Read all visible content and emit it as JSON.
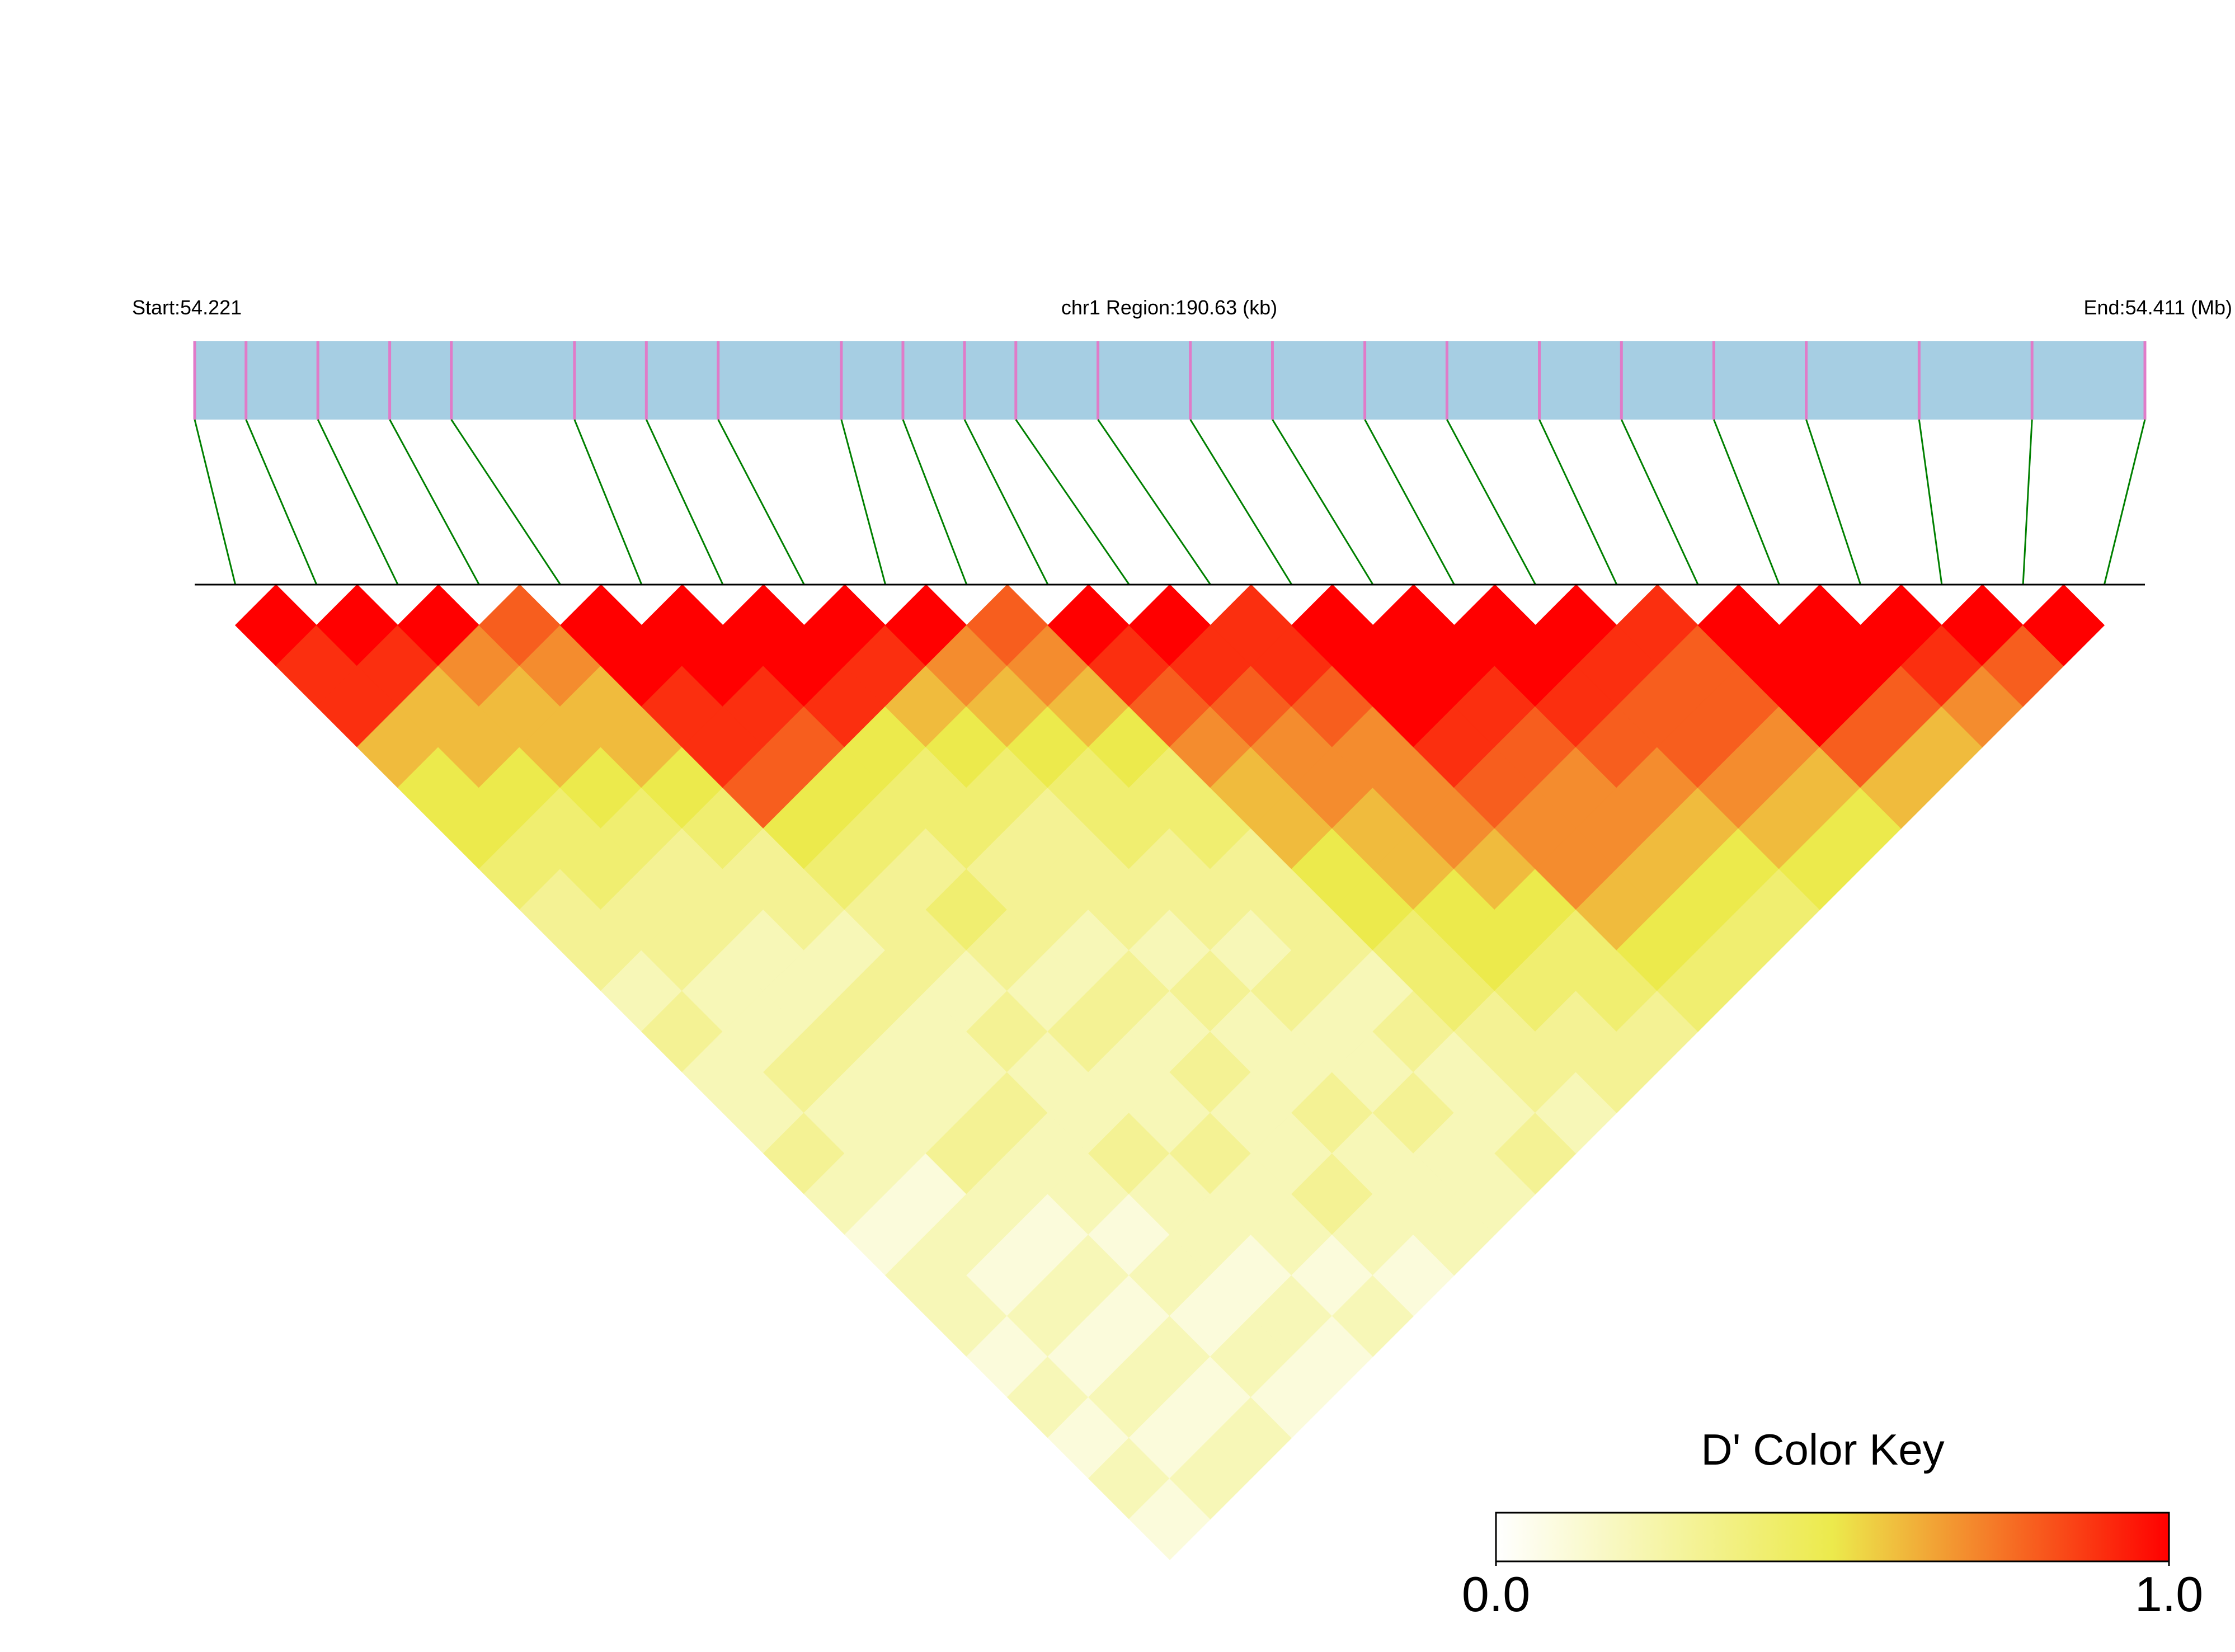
{
  "chart_data": {
    "type": "ld-heatmap",
    "start_label": "Start:54.221",
    "region_label": "chr1 Region:190.63 (kb)",
    "end_label": "End:54.411 (Mb)",
    "xlim": [
      54.221,
      54.411
    ],
    "x": [
      54.221,
      54.226,
      54.233,
      54.24,
      54.246,
      54.258,
      54.265,
      54.272,
      54.284,
      54.29,
      54.296,
      54.301,
      54.309,
      54.318,
      54.326,
      54.335,
      54.343,
      54.352,
      54.36,
      54.369,
      54.378,
      54.389,
      54.4,
      54.411
    ],
    "dprime": [
      [
        1,
        0.9,
        0.9,
        0.6,
        0.5,
        0.5,
        0.4,
        0.3,
        0.3,
        0.2,
        0.3,
        0.2,
        0.2,
        0.3,
        0.2,
        0.1,
        0.2,
        0.2,
        0.1,
        0.2,
        0.1,
        0.2,
        0.1
      ],
      [
        1,
        0.9,
        0.6,
        0.6,
        0.5,
        0.4,
        0.4,
        0.3,
        0.3,
        0.2,
        0.2,
        0.3,
        0.2,
        0.2,
        0.1,
        0.2,
        0.1,
        0.2,
        0.1,
        0.2,
        0.1,
        0.2
      ],
      [
        1,
        0.7,
        0.6,
        0.6,
        0.5,
        0.4,
        0.3,
        0.3,
        0.2,
        0.2,
        0.3,
        0.2,
        0.2,
        0.3,
        0.2,
        0.1,
        0.2,
        0.1,
        0.2,
        0.1,
        0.2
      ],
      [
        0.8,
        0.7,
        0.6,
        0.6,
        0.5,
        0.4,
        0.3,
        0.3,
        0.2,
        0.3,
        0.2,
        0.2,
        0.3,
        0.2,
        0.2,
        0.1,
        0.2,
        0.1,
        0.2,
        0.1
      ],
      [
        1,
        1,
        0.9,
        0.9,
        0.8,
        0.5,
        0.4,
        0.3,
        0.3,
        0.2,
        0.3,
        0.2,
        0.2,
        0.3,
        0.2,
        0.2,
        0.1,
        0.2,
        0.1
      ],
      [
        1,
        1,
        0.9,
        0.8,
        0.5,
        0.4,
        0.3,
        0.4,
        0.3,
        0.2,
        0.3,
        0.2,
        0.2,
        0.3,
        0.2,
        0.2,
        0.1,
        0.2
      ],
      [
        1,
        1,
        0.9,
        0.5,
        0.4,
        0.4,
        0.3,
        0.3,
        0.2,
        0.3,
        0.2,
        0.3,
        0.2,
        0.2,
        0.3,
        0.2,
        0.1
      ],
      [
        1,
        0.9,
        0.6,
        0.5,
        0.4,
        0.3,
        0.3,
        0.3,
        0.2,
        0.3,
        0.2,
        0.2,
        0.3,
        0.2,
        0.2,
        0.2
      ],
      [
        1,
        0.7,
        0.6,
        0.5,
        0.4,
        0.4,
        0.3,
        0.3,
        0.2,
        0.3,
        0.2,
        0.2,
        0.3,
        0.2,
        0.2
      ],
      [
        0.8,
        0.7,
        0.6,
        0.5,
        0.4,
        0.4,
        0.3,
        0.3,
        0.3,
        0.2,
        0.3,
        0.2,
        0.2,
        0.3
      ],
      [
        1,
        0.9,
        0.8,
        0.7,
        0.6,
        0.6,
        0.5,
        0.5,
        0.4,
        0.4,
        0.3,
        0.3,
        0.2
      ],
      [
        1,
        0.9,
        0.8,
        0.7,
        0.7,
        0.6,
        0.6,
        0.5,
        0.5,
        0.4,
        0.3,
        0.3
      ],
      [
        0.9,
        0.9,
        0.8,
        0.7,
        0.7,
        0.7,
        0.6,
        0.5,
        0.4,
        0.4,
        0.3
      ],
      [
        1,
        1,
        1,
        0.9,
        0.8,
        0.7,
        0.7,
        0.6,
        0.5,
        0.4
      ],
      [
        1,
        1,
        0.9,
        0.8,
        0.7,
        0.7,
        0.6,
        0.5,
        0.4
      ],
      [
        1,
        1,
        0.9,
        0.8,
        0.7,
        0.6,
        0.5,
        0.4
      ],
      [
        1,
        0.9,
        0.8,
        0.8,
        0.7,
        0.6,
        0.5
      ],
      [
        0.9,
        0.8,
        0.8,
        0.7,
        0.6,
        0.5
      ],
      [
        1,
        1,
        1,
        0.8,
        0.6
      ],
      [
        1,
        1,
        0.8,
        0.6
      ],
      [
        1,
        0.9,
        0.7
      ],
      [
        1,
        0.8
      ],
      [
        1
      ]
    ],
    "colormap": [
      "#ffffff",
      "#ecea4c",
      "#ff0000"
    ],
    "track_color": "#a6cee3",
    "snp_color": "#e07bc8",
    "connector_color": "#008000",
    "key_title": "D' Color Key",
    "key_ticks": [
      {
        "value": 0,
        "label": "0.0"
      },
      {
        "value": 1,
        "label": "1.0"
      }
    ]
  }
}
